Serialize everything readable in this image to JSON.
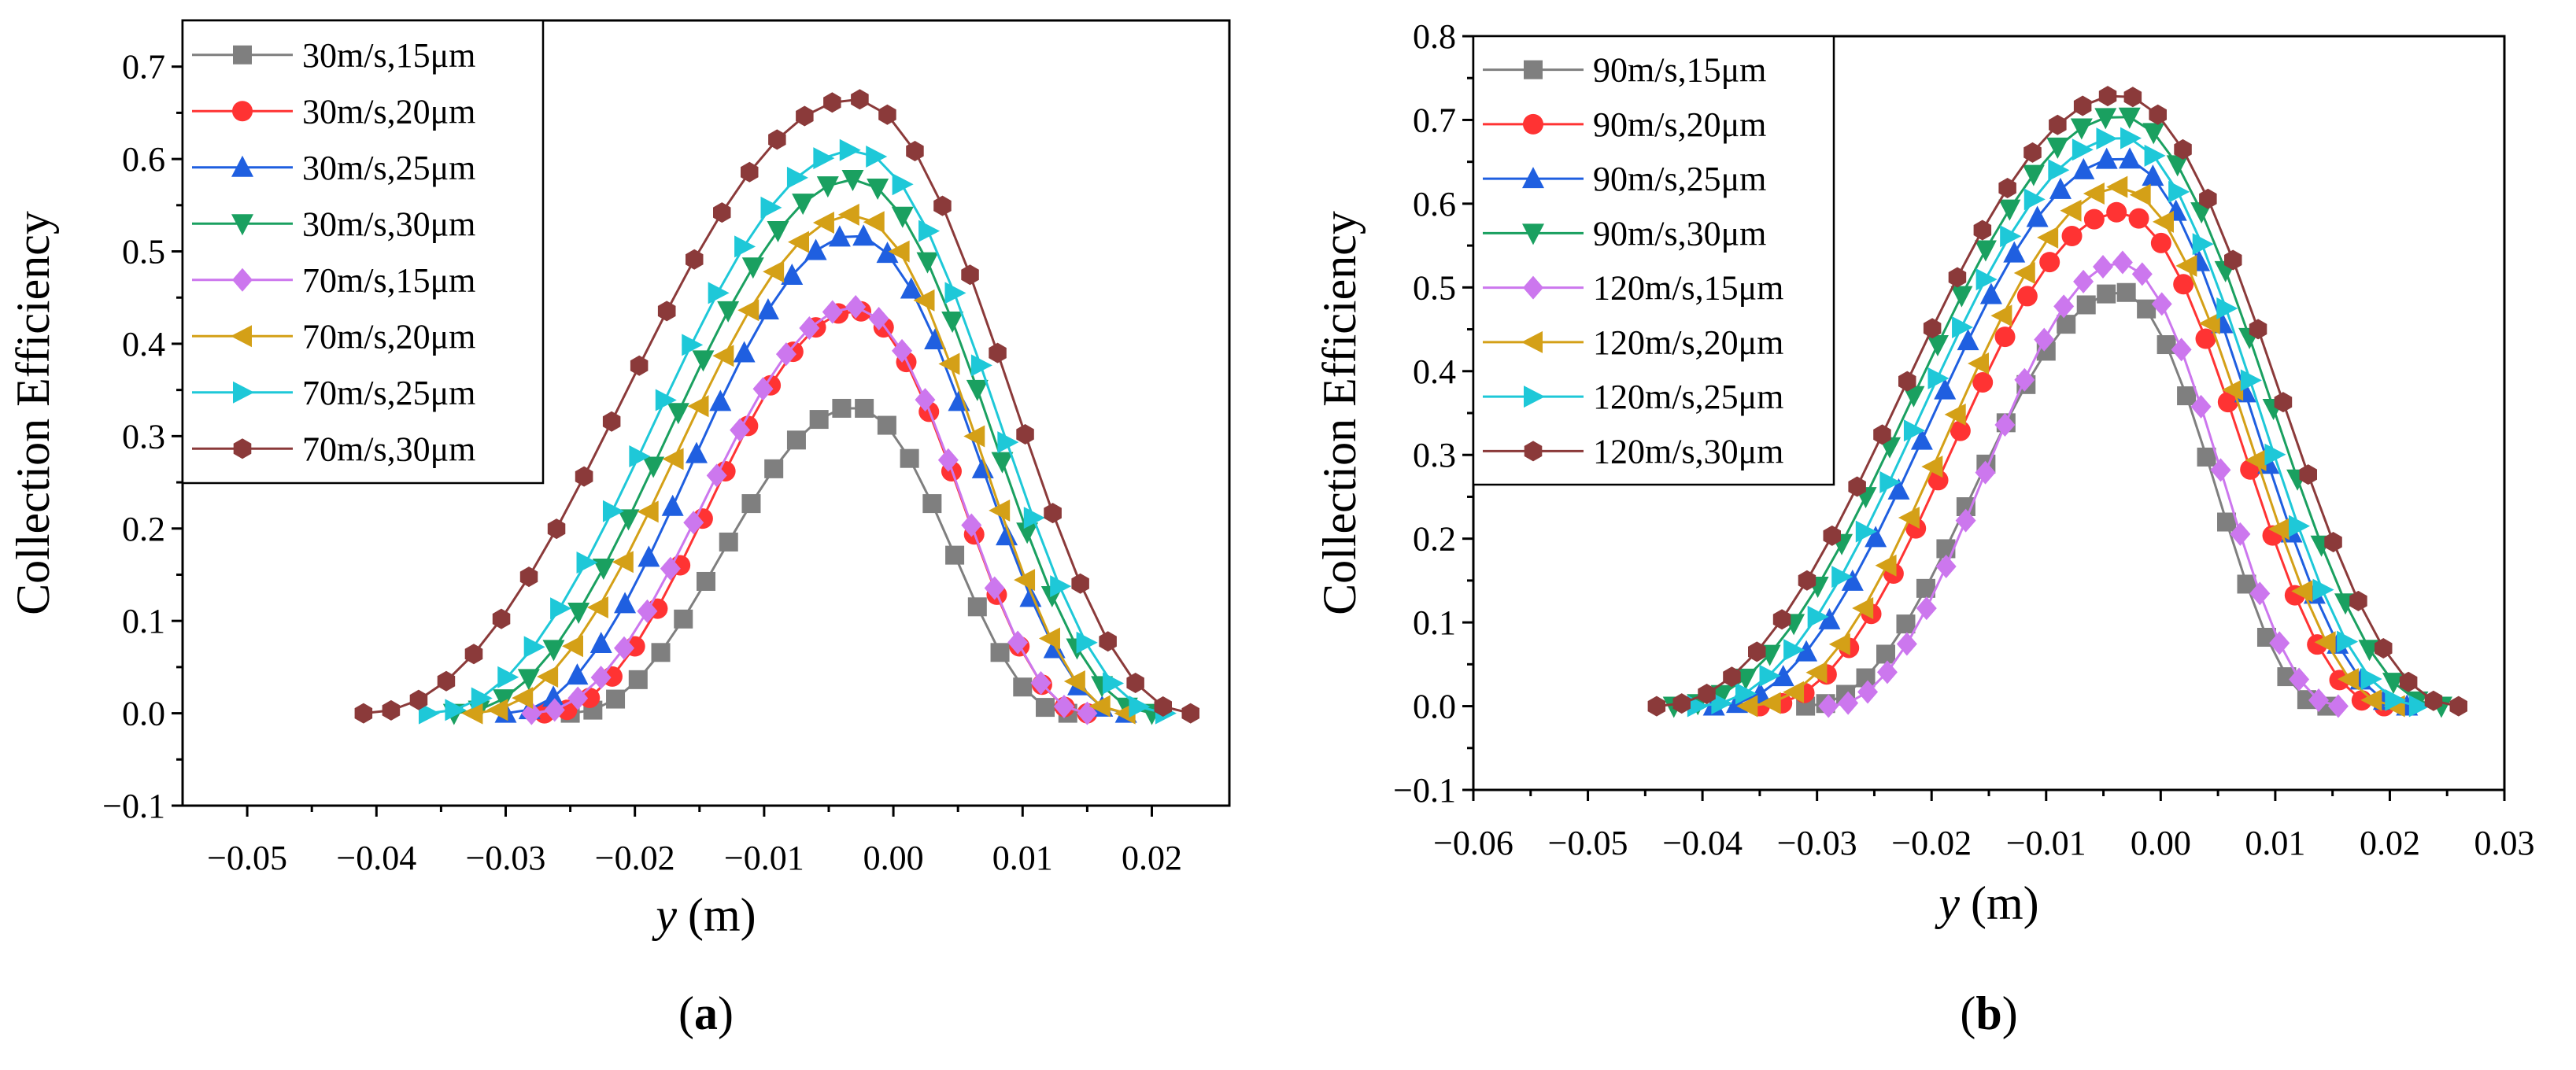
{
  "chart_data": [
    {
      "type": "line",
      "panel_label": "a",
      "xlabel_var": "y",
      "xlabel_unit": "(m)",
      "ylabel": "Collection Efficiency",
      "xlim": [
        -0.055,
        0.026
      ],
      "ylim": [
        -0.1,
        0.75
      ],
      "xticks": [
        -0.05,
        -0.04,
        -0.03,
        -0.02,
        -0.01,
        0.0,
        0.01,
        0.02
      ],
      "xtick_labels": [
        "−0.05",
        "−0.04",
        "−0.03",
        "−0.02",
        "−0.01",
        "0.00",
        "0.01",
        "0.02"
      ],
      "yticks": [
        -0.1,
        0.0,
        0.1,
        0.2,
        0.3,
        0.4,
        0.5,
        0.6,
        0.7
      ],
      "ytick_labels": [
        "−0.1",
        "0.0",
        "0.1",
        "0.2",
        "0.3",
        "0.4",
        "0.5",
        "0.6",
        "0.7"
      ],
      "legend_position": "top-left",
      "grid": false,
      "series": [
        {
          "name": "30m/s,15μm",
          "color": "#7f7f7f",
          "marker": "square",
          "x_start": -0.025,
          "x_end": 0.0135,
          "peak_x": -0.003,
          "peak_y": 0.332,
          "n": 23
        },
        {
          "name": "30m/s,20μm",
          "color": "#ff3333",
          "marker": "circle",
          "x_start": -0.027,
          "x_end": 0.015,
          "peak_x": -0.003,
          "peak_y": 0.436,
          "n": 25
        },
        {
          "name": "30m/s,25μm",
          "color": "#1f5fe0",
          "marker": "triangle-up",
          "x_start": -0.03,
          "x_end": 0.018,
          "peak_x": -0.003,
          "peak_y": 0.518,
          "n": 27
        },
        {
          "name": "30m/s,30μm",
          "color": "#1aa060",
          "marker": "triangle-down",
          "x_start": -0.034,
          "x_end": 0.02,
          "peak_x": -0.003,
          "peak_y": 0.578,
          "n": 29
        },
        {
          "name": "70m/s,15μm",
          "color": "#cc77ee",
          "marker": "diamond",
          "x_start": -0.028,
          "x_end": 0.015,
          "peak_x": -0.003,
          "peak_y": 0.44,
          "n": 25
        },
        {
          "name": "70m/s,20μm",
          "color": "#d4a017",
          "marker": "triangle-left",
          "x_start": -0.0325,
          "x_end": 0.018,
          "peak_x": -0.003,
          "peak_y": 0.54,
          "n": 27
        },
        {
          "name": "70m/s,25μm",
          "color": "#1ec8d8",
          "marker": "triangle-right",
          "x_start": -0.036,
          "x_end": 0.021,
          "peak_x": -0.003,
          "peak_y": 0.61,
          "n": 29
        },
        {
          "name": "70m/s,30μm",
          "color": "#8b3a3a",
          "marker": "hexagon",
          "x_start": -0.041,
          "x_end": 0.023,
          "peak_x": -0.003,
          "peak_y": 0.665,
          "n": 31
        }
      ]
    },
    {
      "type": "line",
      "panel_label": "b",
      "xlabel_var": "y",
      "xlabel_unit": "(m)",
      "ylabel": "Collection Efficiency",
      "xlim": [
        -0.06,
        0.03
      ],
      "ylim": [
        -0.1,
        0.8
      ],
      "xticks": [
        -0.06,
        -0.05,
        -0.04,
        -0.03,
        -0.02,
        -0.01,
        0.0,
        0.01,
        0.02,
        0.03
      ],
      "xtick_labels": [
        "−0.06",
        "−0.05",
        "−0.04",
        "−0.03",
        "−0.02",
        "−0.01",
        "0.00",
        "0.01",
        "0.02",
        "0.03"
      ],
      "yticks": [
        -0.1,
        0.0,
        0.1,
        0.2,
        0.3,
        0.4,
        0.5,
        0.6,
        0.7,
        0.8
      ],
      "ytick_labels": [
        "−0.1",
        "0.0",
        "0.1",
        "0.2",
        "0.3",
        "0.4",
        "0.5",
        "0.6",
        "0.7",
        "0.8"
      ],
      "legend_position": "top-left",
      "grid": false,
      "series": [
        {
          "name": "90m/s,15μm",
          "color": "#7f7f7f",
          "marker": "square",
          "x_start": -0.031,
          "x_end": 0.0145,
          "peak_x": -0.0035,
          "peak_y": 0.495,
          "n": 27
        },
        {
          "name": "90m/s,20μm",
          "color": "#ff3333",
          "marker": "circle",
          "x_start": -0.035,
          "x_end": 0.0195,
          "peak_x": -0.0035,
          "peak_y": 0.59,
          "n": 29
        },
        {
          "name": "90m/s,25μm",
          "color": "#1f5fe0",
          "marker": "triangle-up",
          "x_start": -0.039,
          "x_end": 0.0215,
          "peak_x": -0.0035,
          "peak_y": 0.655,
          "n": 31
        },
        {
          "name": "90m/s,30μm",
          "color": "#1aa060",
          "marker": "triangle-down",
          "x_start": -0.0425,
          "x_end": 0.0245,
          "peak_x": -0.0035,
          "peak_y": 0.705,
          "n": 33
        },
        {
          "name": "120m/s,15μm",
          "color": "#cc77ee",
          "marker": "diamond",
          "x_start": -0.029,
          "x_end": 0.0155,
          "peak_x": -0.0035,
          "peak_y": 0.53,
          "n": 27
        },
        {
          "name": "120m/s,20μm",
          "color": "#d4a017",
          "marker": "triangle-left",
          "x_start": -0.036,
          "x_end": 0.0205,
          "peak_x": -0.0035,
          "peak_y": 0.62,
          "n": 29
        },
        {
          "name": "120m/s,25μm",
          "color": "#1ec8d8",
          "marker": "triangle-right",
          "x_start": -0.0405,
          "x_end": 0.0225,
          "peak_x": -0.0035,
          "peak_y": 0.68,
          "n": 31
        },
        {
          "name": "120m/s,30μm",
          "color": "#8b3a3a",
          "marker": "hexagon",
          "x_start": -0.044,
          "x_end": 0.026,
          "peak_x": -0.0035,
          "peak_y": 0.73,
          "n": 33
        }
      ]
    }
  ]
}
